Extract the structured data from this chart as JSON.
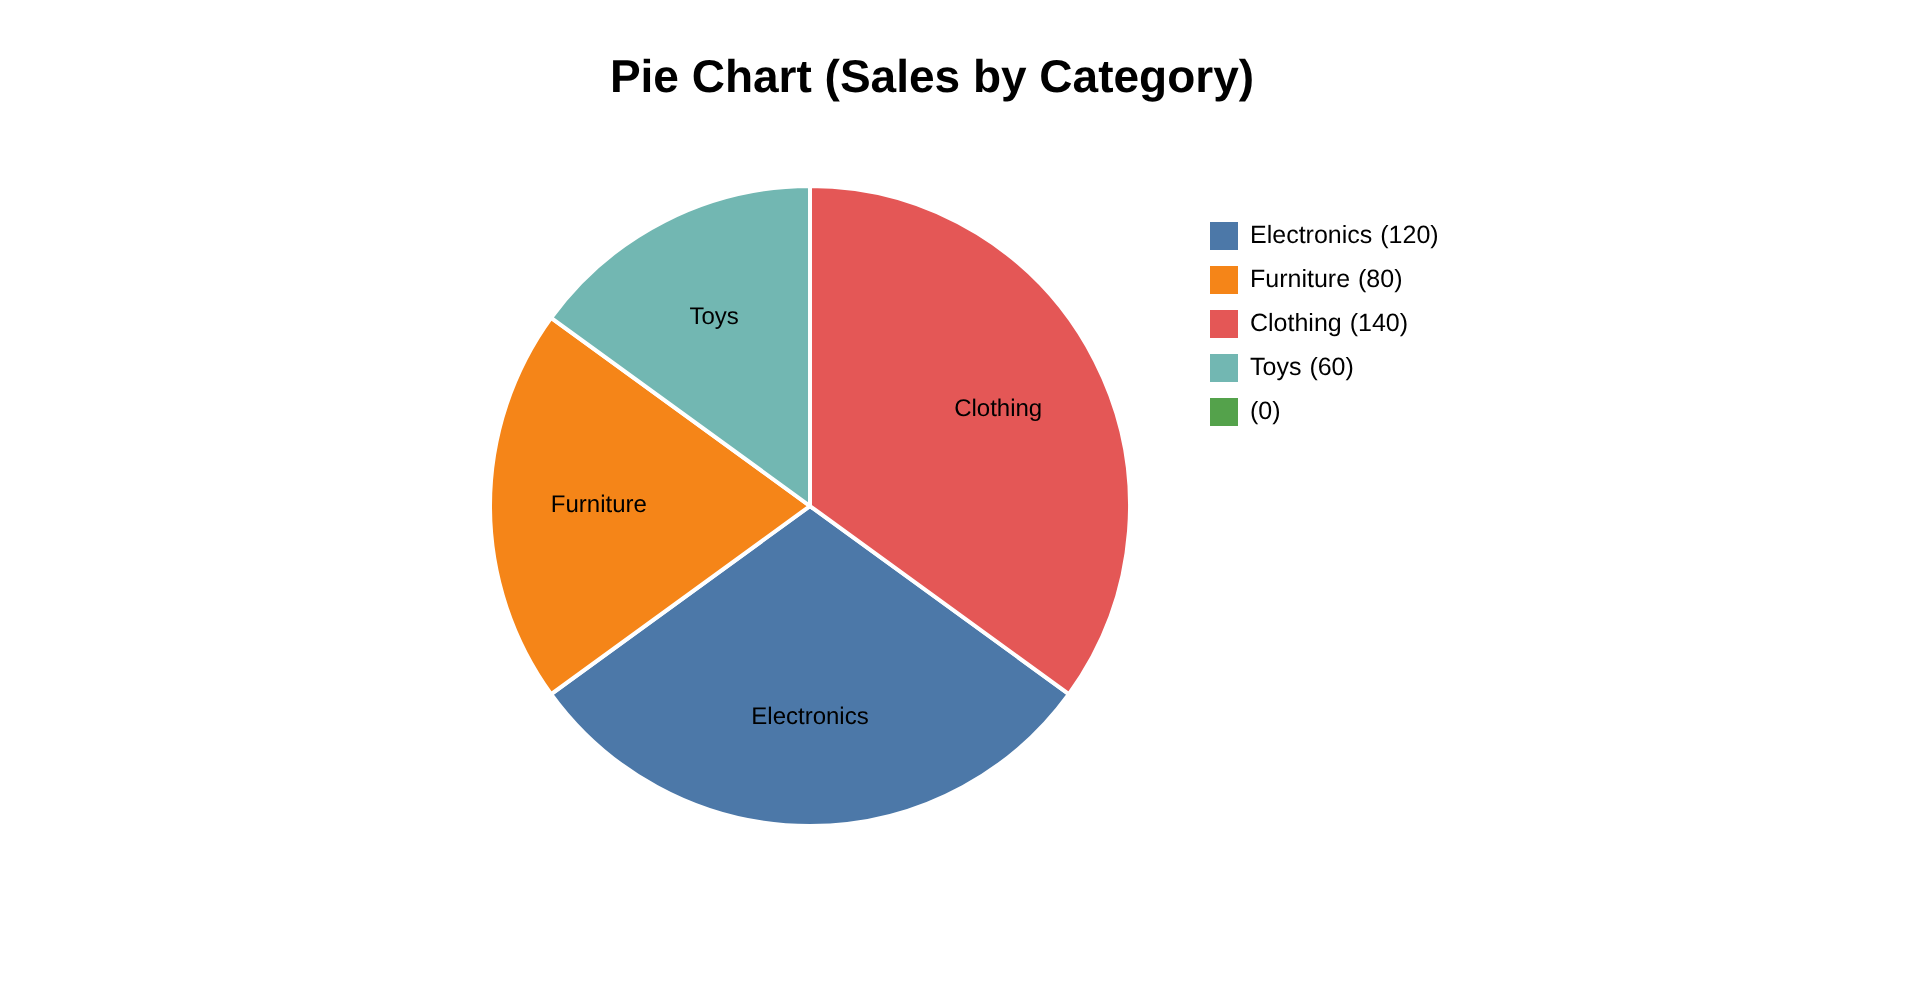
{
  "chart_data": {
    "type": "pie",
    "title": "Pie Chart (Sales by Category)",
    "categories": [
      "Electronics",
      "Furniture",
      "Clothing",
      "Toys",
      null
    ],
    "values": [
      120,
      80,
      140,
      60,
      0
    ],
    "value_labels": [
      "(120)",
      "(80)",
      "(140)",
      "(60)",
      "(0)"
    ],
    "colors": [
      "#4c78a8",
      "#f58518",
      "#e45756",
      "#72b7b2",
      "#54a24b"
    ],
    "legend": "right"
  }
}
